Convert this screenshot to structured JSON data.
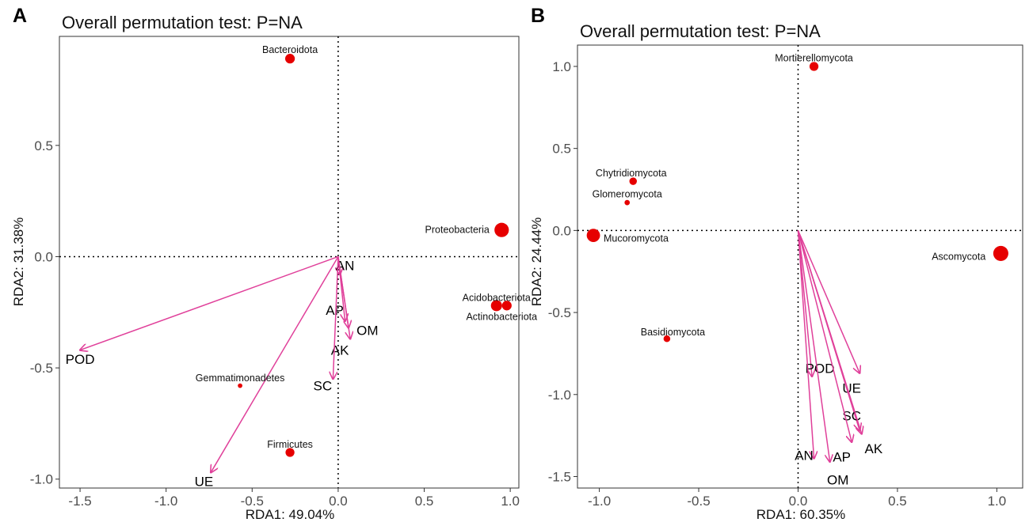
{
  "colors": {
    "arrow": "#e0409a",
    "point": "#e60000",
    "frame": "#333333",
    "tick_text": "#4d4d4d"
  },
  "chart_data": [
    {
      "panel": "A",
      "type": "scatter",
      "title": "Overall permutation test: P=NA",
      "xlabel": "RDA1: 49.04%",
      "ylabel": "RDA2: 31.38%",
      "xlim": [
        -1.62,
        1.05
      ],
      "ylim": [
        -1.04,
        0.99
      ],
      "xticks": [
        -1.5,
        -1.0,
        -0.5,
        0.0,
        0.5,
        1.0
      ],
      "xtick_labels": [
        "-1.5",
        "-1.0",
        "-0.5",
        "0.0",
        "0.5",
        "1.0"
      ],
      "yticks": [
        -1.0,
        -0.5,
        0.0,
        0.5
      ],
      "ytick_labels": [
        "-1.0",
        "-0.5",
        "0.0",
        "0.5"
      ],
      "points": [
        {
          "name": "Bacteroidota",
          "x": -0.28,
          "y": 0.89,
          "size": 2.0,
          "label_dx": 0.0,
          "label_dy": 0.04
        },
        {
          "name": "Proteobacteria",
          "x": 0.95,
          "y": 0.12,
          "size": 3.3,
          "label_dx": -0.02,
          "label_dy": 0.0,
          "anchor": "end"
        },
        {
          "name": "Acidobacteriota",
          "x": 0.92,
          "y": -0.22,
          "size": 2.4,
          "label_dx": 0.0,
          "label_dy": 0.035
        },
        {
          "name": "Actinobacteriota",
          "x": 0.98,
          "y": -0.22,
          "size": 2.0,
          "label_dx": -0.03,
          "label_dy": -0.05
        },
        {
          "name": "Gemmatimonadetes",
          "x": -0.57,
          "y": -0.58,
          "size": 0.6,
          "label_dx": 0.0,
          "label_dy": 0.035
        },
        {
          "name": "Firmicutes",
          "x": -0.28,
          "y": -0.88,
          "size": 1.8,
          "label_dx": 0.0,
          "label_dy": 0.035
        }
      ],
      "arrows": [
        {
          "name": "AN",
          "x": 0.01,
          "y": -0.08,
          "label_x": 0.04,
          "label_y": -0.04
        },
        {
          "name": "AP",
          "x": 0.04,
          "y": -0.29,
          "label_x": -0.02,
          "label_y": -0.24
        },
        {
          "name": "OM",
          "x": 0.07,
          "y": -0.37,
          "label_x": 0.17,
          "label_y": -0.33
        },
        {
          "name": "AK",
          "x": 0.06,
          "y": -0.32,
          "label_x": 0.01,
          "label_y": -0.42
        },
        {
          "name": "SC",
          "x": -0.03,
          "y": -0.55,
          "label_x": -0.09,
          "label_y": -0.58
        },
        {
          "name": "POD",
          "x": -1.5,
          "y": -0.42,
          "label_x": -1.5,
          "label_y": -0.46
        },
        {
          "name": "UE",
          "x": -0.74,
          "y": -0.97,
          "label_x": -0.78,
          "label_y": -1.01
        }
      ]
    },
    {
      "panel": "B",
      "type": "scatter",
      "title": "Overall permutation test: P=NA",
      "xlabel": "RDA1: 60.35%",
      "ylabel": "RDA2: 24.44%",
      "xlim": [
        -1.11,
        1.13
      ],
      "ylim": [
        -1.57,
        1.13
      ],
      "xticks": [
        -1.0,
        -0.5,
        0.0,
        0.5,
        1.0
      ],
      "xtick_labels": [
        "-1.0",
        "-0.5",
        "0.0",
        "0.5",
        "1.0"
      ],
      "yticks": [
        -1.5,
        -1.0,
        -0.5,
        0.0,
        0.5,
        1.0
      ],
      "ytick_labels": [
        "-1.5",
        "-1.0",
        "-0.5",
        "0.0",
        "0.5",
        "1.0"
      ],
      "points": [
        {
          "name": "Mortierellomycota",
          "x": 0.08,
          "y": 1.0,
          "size": 1.8,
          "label_dx": 0.0,
          "label_dy": 0.05
        },
        {
          "name": "Chytridiomycota",
          "x": -0.83,
          "y": 0.3,
          "size": 1.4,
          "label_dx": -0.01,
          "label_dy": 0.05
        },
        {
          "name": "Glomeromycota",
          "x": -0.86,
          "y": 0.17,
          "size": 0.8,
          "label_dx": 0.0,
          "label_dy": 0.05
        },
        {
          "name": "Mucoromycota",
          "x": -1.03,
          "y": -0.03,
          "size": 3.0,
          "label_dx": 0.01,
          "label_dy": -0.02,
          "anchor": "start"
        },
        {
          "name": "Ascomycota",
          "x": 1.02,
          "y": -0.14,
          "size": 3.5,
          "label_dx": -0.03,
          "label_dy": -0.02,
          "anchor": "end"
        },
        {
          "name": "Basidiomycota",
          "x": -0.66,
          "y": -0.66,
          "size": 1.2,
          "label_dx": 0.03,
          "label_dy": 0.04
        }
      ],
      "arrows": [
        {
          "name": "POD",
          "x": 0.07,
          "y": -0.89,
          "label_x": 0.11,
          "label_y": -0.84
        },
        {
          "name": "UE",
          "x": 0.31,
          "y": -0.87,
          "label_x": 0.27,
          "label_y": -0.96
        },
        {
          "name": "SC",
          "x": 0.31,
          "y": -1.22,
          "label_x": 0.27,
          "label_y": -1.13
        },
        {
          "name": "AK",
          "x": 0.32,
          "y": -1.24,
          "label_x": 0.38,
          "label_y": -1.33
        },
        {
          "name": "AP",
          "x": 0.27,
          "y": -1.29,
          "label_x": 0.22,
          "label_y": -1.38
        },
        {
          "name": "OM",
          "x": 0.16,
          "y": -1.41,
          "label_x": 0.2,
          "label_y": -1.52
        },
        {
          "name": "AN",
          "x": 0.08,
          "y": -1.39,
          "label_x": 0.03,
          "label_y": -1.37
        }
      ]
    }
  ]
}
